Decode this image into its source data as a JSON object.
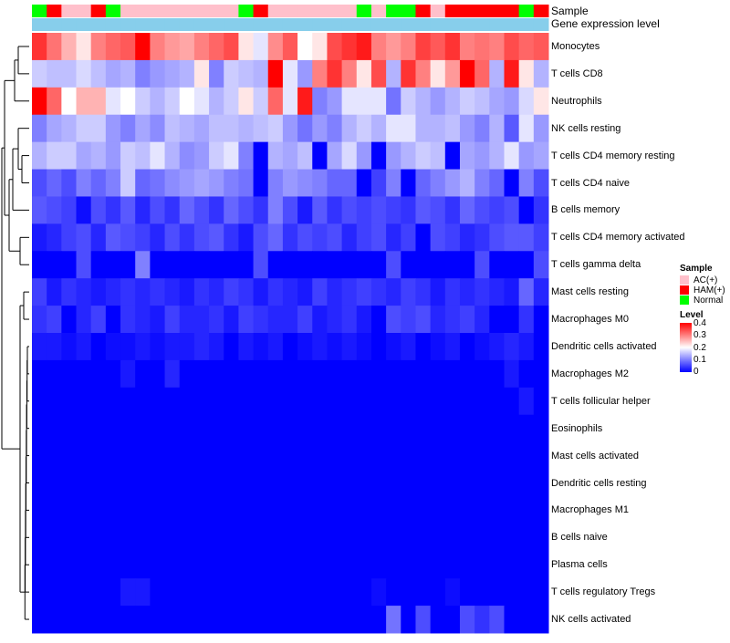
{
  "chart_data": {
    "type": "heatmap",
    "annotation_titles": {
      "sample": "Sample",
      "gene_expression": "Gene expression level"
    },
    "sample_groups": [
      "Normal",
      "HAM(+)",
      "AC(+)",
      "AC(+)",
      "HAM(+)",
      "Normal",
      "AC(+)",
      "AC(+)",
      "AC(+)",
      "AC(+)",
      "AC(+)",
      "AC(+)",
      "AC(+)",
      "AC(+)",
      "Normal",
      "HAM(+)",
      "AC(+)",
      "AC(+)",
      "AC(+)",
      "AC(+)",
      "AC(+)",
      "AC(+)",
      "Normal",
      "AC(+)",
      "Normal",
      "Normal",
      "HAM(+)",
      "AC(+)",
      "HAM(+)",
      "HAM(+)",
      "HAM(+)",
      "HAM(+)",
      "HAM(+)",
      "Normal",
      "HAM(+)"
    ],
    "sample_colors": {
      "AC(+)": "#FFC0CB",
      "HAM(+)": "#FF0000",
      "Normal": "#00FF00"
    },
    "gene_expression_color": "#87CEEB",
    "rows": [
      "Monocytes",
      "T cells CD8",
      "Neutrophils",
      "NK cells resting",
      "T cells CD4 memory resting",
      "T cells CD4 naive",
      "B cells memory",
      "T cells CD4 memory activated",
      "T cells gamma delta",
      "Mast cells resting",
      "Macrophages M0",
      "Dendritic cells activated",
      "Macrophages M2",
      "T cells follicular helper",
      "Eosinophils",
      "Mast cells activated",
      "Dendritic cells resting",
      "Macrophages M1",
      "B cells naive",
      "Plasma cells",
      "T cells regulatory  Tregs",
      "NK cells activated"
    ],
    "values": [
      [
        0.36,
        0.31,
        0.26,
        0.22,
        0.3,
        0.32,
        0.33,
        0.4,
        0.3,
        0.28,
        0.27,
        0.3,
        0.32,
        0.34,
        0.22,
        0.18,
        0.29,
        0.33,
        0.2,
        0.22,
        0.34,
        0.36,
        0.38,
        0.3,
        0.28,
        0.3,
        0.35,
        0.33,
        0.36,
        0.3,
        0.31,
        0.3,
        0.34,
        0.32,
        0.33
      ],
      [
        0.16,
        0.15,
        0.15,
        0.17,
        0.15,
        0.13,
        0.14,
        0.1,
        0.12,
        0.13,
        0.14,
        0.22,
        0.1,
        0.16,
        0.15,
        0.14,
        0.4,
        0.18,
        0.12,
        0.3,
        0.36,
        0.3,
        0.22,
        0.34,
        0.14,
        0.36,
        0.3,
        0.22,
        0.28,
        0.4,
        0.32,
        0.14,
        0.38,
        0.22,
        0.14
      ],
      [
        0.4,
        0.32,
        0.2,
        0.26,
        0.26,
        0.18,
        0.2,
        0.16,
        0.14,
        0.16,
        0.2,
        0.18,
        0.14,
        0.16,
        0.22,
        0.16,
        0.32,
        0.18,
        0.38,
        0.1,
        0.12,
        0.18,
        0.18,
        0.18,
        0.09,
        0.16,
        0.14,
        0.12,
        0.14,
        0.16,
        0.15,
        0.13,
        0.12,
        0.17,
        0.22
      ],
      [
        0.1,
        0.13,
        0.14,
        0.16,
        0.16,
        0.12,
        0.1,
        0.13,
        0.11,
        0.15,
        0.14,
        0.13,
        0.15,
        0.15,
        0.14,
        0.15,
        0.16,
        0.12,
        0.09,
        0.12,
        0.1,
        0.14,
        0.16,
        0.14,
        0.18,
        0.18,
        0.14,
        0.14,
        0.15,
        0.12,
        0.1,
        0.14,
        0.07,
        0.18,
        0.12
      ],
      [
        0.14,
        0.16,
        0.16,
        0.13,
        0.14,
        0.12,
        0.16,
        0.15,
        0.18,
        0.14,
        0.11,
        0.12,
        0.16,
        0.18,
        0.1,
        0.0,
        0.14,
        0.13,
        0.15,
        0.0,
        0.13,
        0.17,
        0.12,
        0.0,
        0.12,
        0.14,
        0.16,
        0.15,
        0.0,
        0.13,
        0.12,
        0.14,
        0.18,
        0.12,
        0.13
      ],
      [
        0.06,
        0.08,
        0.06,
        0.1,
        0.08,
        0.1,
        0.16,
        0.08,
        0.09,
        0.11,
        0.12,
        0.13,
        0.12,
        0.1,
        0.09,
        0.0,
        0.1,
        0.12,
        0.11,
        0.1,
        0.08,
        0.08,
        0.0,
        0.05,
        0.1,
        0.0,
        0.08,
        0.1,
        0.12,
        0.14,
        0.1,
        0.08,
        0.0,
        0.1,
        0.06
      ],
      [
        0.07,
        0.06,
        0.05,
        0.01,
        0.06,
        0.04,
        0.07,
        0.03,
        0.06,
        0.04,
        0.08,
        0.06,
        0.04,
        0.08,
        0.06,
        0.04,
        0.1,
        0.06,
        0.02,
        0.07,
        0.04,
        0.06,
        0.05,
        0.06,
        0.05,
        0.04,
        0.07,
        0.06,
        0.04,
        0.08,
        0.06,
        0.05,
        0.06,
        0.0,
        0.04
      ],
      [
        0.02,
        0.03,
        0.05,
        0.06,
        0.03,
        0.07,
        0.06,
        0.05,
        0.03,
        0.06,
        0.04,
        0.06,
        0.07,
        0.04,
        0.02,
        0.06,
        0.08,
        0.04,
        0.06,
        0.05,
        0.06,
        0.03,
        0.05,
        0.06,
        0.03,
        0.05,
        0.0,
        0.06,
        0.05,
        0.03,
        0.04,
        0.06,
        0.07,
        0.07,
        0.05
      ],
      [
        0.0,
        0.0,
        0.0,
        0.06,
        0.0,
        0.0,
        0.0,
        0.1,
        0.0,
        0.0,
        0.0,
        0.0,
        0.0,
        0.0,
        0.0,
        0.06,
        0.0,
        0.0,
        0.0,
        0.0,
        0.0,
        0.0,
        0.0,
        0.0,
        0.06,
        0.0,
        0.0,
        0.0,
        0.0,
        0.0,
        0.06,
        0.0,
        0.0,
        0.0,
        0.06
      ],
      [
        0.05,
        0.02,
        0.04,
        0.03,
        0.02,
        0.03,
        0.04,
        0.03,
        0.04,
        0.03,
        0.02,
        0.04,
        0.03,
        0.05,
        0.04,
        0.02,
        0.04,
        0.03,
        0.02,
        0.05,
        0.03,
        0.04,
        0.05,
        0.04,
        0.03,
        0.05,
        0.04,
        0.02,
        0.04,
        0.03,
        0.04,
        0.03,
        0.02,
        0.08,
        0.03
      ],
      [
        0.04,
        0.05,
        0.0,
        0.03,
        0.05,
        0.0,
        0.04,
        0.03,
        0.02,
        0.05,
        0.03,
        0.03,
        0.04,
        0.02,
        0.05,
        0.04,
        0.03,
        0.03,
        0.05,
        0.02,
        0.03,
        0.04,
        0.02,
        0.0,
        0.06,
        0.05,
        0.06,
        0.03,
        0.04,
        0.05,
        0.03,
        0.0,
        0.0,
        0.04,
        0.0
      ],
      [
        0.02,
        0.02,
        0.01,
        0.02,
        0.0,
        0.01,
        0.01,
        0.02,
        0.01,
        0.02,
        0.02,
        0.03,
        0.02,
        0.0,
        0.02,
        0.01,
        0.02,
        0.0,
        0.01,
        0.02,
        0.01,
        0.02,
        0.01,
        0.0,
        0.01,
        0.02,
        0.0,
        0.01,
        0.02,
        0.0,
        0.01,
        0.02,
        0.03,
        0.02,
        0.0
      ],
      [
        0.0,
        0.0,
        0.0,
        0.0,
        0.0,
        0.0,
        0.02,
        0.0,
        0.0,
        0.03,
        0.0,
        0.0,
        0.0,
        0.0,
        0.0,
        0.0,
        0.0,
        0.0,
        0.0,
        0.0,
        0.0,
        0.0,
        0.0,
        0.0,
        0.0,
        0.0,
        0.0,
        0.0,
        0.0,
        0.0,
        0.0,
        0.0,
        0.02,
        0.0,
        0.0
      ],
      [
        0.0,
        0.0,
        0.0,
        0.0,
        0.0,
        0.0,
        0.0,
        0.0,
        0.0,
        0.0,
        0.0,
        0.0,
        0.0,
        0.0,
        0.0,
        0.0,
        0.0,
        0.0,
        0.0,
        0.0,
        0.0,
        0.0,
        0.0,
        0.0,
        0.0,
        0.0,
        0.0,
        0.0,
        0.0,
        0.0,
        0.0,
        0.0,
        0.0,
        0.02,
        0.0
      ],
      [
        0.0,
        0.0,
        0.0,
        0.0,
        0.0,
        0.0,
        0.0,
        0.0,
        0.0,
        0.0,
        0.0,
        0.0,
        0.0,
        0.0,
        0.0,
        0.0,
        0.0,
        0.0,
        0.0,
        0.0,
        0.0,
        0.0,
        0.0,
        0.0,
        0.0,
        0.0,
        0.0,
        0.0,
        0.0,
        0.0,
        0.0,
        0.0,
        0.0,
        0.0,
        0.0
      ],
      [
        0.0,
        0.0,
        0.0,
        0.0,
        0.0,
        0.0,
        0.0,
        0.0,
        0.0,
        0.0,
        0.0,
        0.0,
        0.0,
        0.0,
        0.0,
        0.0,
        0.0,
        0.0,
        0.0,
        0.0,
        0.0,
        0.0,
        0.0,
        0.0,
        0.0,
        0.0,
        0.0,
        0.0,
        0.0,
        0.0,
        0.0,
        0.0,
        0.0,
        0.0,
        0.0
      ],
      [
        0.0,
        0.0,
        0.0,
        0.0,
        0.0,
        0.0,
        0.0,
        0.0,
        0.0,
        0.0,
        0.0,
        0.0,
        0.0,
        0.0,
        0.0,
        0.0,
        0.0,
        0.0,
        0.0,
        0.0,
        0.0,
        0.0,
        0.0,
        0.0,
        0.0,
        0.0,
        0.0,
        0.0,
        0.0,
        0.0,
        0.0,
        0.0,
        0.0,
        0.0,
        0.0
      ],
      [
        0.0,
        0.0,
        0.0,
        0.0,
        0.0,
        0.0,
        0.0,
        0.0,
        0.0,
        0.0,
        0.0,
        0.0,
        0.0,
        0.0,
        0.0,
        0.0,
        0.0,
        0.0,
        0.0,
        0.0,
        0.0,
        0.0,
        0.0,
        0.0,
        0.0,
        0.0,
        0.0,
        0.0,
        0.0,
        0.0,
        0.0,
        0.0,
        0.0,
        0.0,
        0.0
      ],
      [
        0.0,
        0.0,
        0.0,
        0.0,
        0.0,
        0.0,
        0.0,
        0.0,
        0.0,
        0.0,
        0.0,
        0.0,
        0.0,
        0.0,
        0.0,
        0.0,
        0.0,
        0.0,
        0.0,
        0.0,
        0.0,
        0.0,
        0.0,
        0.0,
        0.0,
        0.0,
        0.0,
        0.0,
        0.0,
        0.0,
        0.0,
        0.0,
        0.0,
        0.0,
        0.0
      ],
      [
        0.0,
        0.0,
        0.0,
        0.0,
        0.0,
        0.0,
        0.0,
        0.0,
        0.0,
        0.0,
        0.0,
        0.0,
        0.0,
        0.0,
        0.0,
        0.0,
        0.0,
        0.0,
        0.0,
        0.0,
        0.0,
        0.0,
        0.0,
        0.0,
        0.0,
        0.0,
        0.0,
        0.0,
        0.0,
        0.0,
        0.0,
        0.0,
        0.0,
        0.0,
        0.0
      ],
      [
        0.0,
        0.0,
        0.0,
        0.0,
        0.0,
        0.0,
        0.02,
        0.02,
        0.0,
        0.0,
        0.0,
        0.0,
        0.0,
        0.0,
        0.0,
        0.0,
        0.0,
        0.0,
        0.0,
        0.0,
        0.0,
        0.0,
        0.0,
        0.01,
        0.0,
        0.0,
        0.0,
        0.0,
        0.01,
        0.0,
        0.0,
        0.0,
        0.0,
        0.0,
        0.0
      ],
      [
        0.0,
        0.0,
        0.0,
        0.0,
        0.0,
        0.0,
        0.0,
        0.0,
        0.0,
        0.0,
        0.0,
        0.0,
        0.0,
        0.0,
        0.0,
        0.0,
        0.0,
        0.0,
        0.0,
        0.0,
        0.0,
        0.0,
        0.0,
        0.0,
        0.09,
        0.0,
        0.06,
        0.0,
        0.0,
        0.06,
        0.04,
        0.06,
        0.0,
        0.0,
        0.0
      ]
    ],
    "color_scale": {
      "min": 0,
      "mid": 0.2,
      "max": 0.4,
      "low": "#0000FF",
      "middle": "#FFFFFF",
      "high": "#FF0000"
    },
    "legend": {
      "sample_title": "Sample",
      "sample_items": [
        "AC(+)",
        "HAM(+)",
        "Normal"
      ],
      "level_title": "Level",
      "level_ticks": [
        "0.4",
        "0.3",
        "0.2",
        "0.1",
        "0"
      ]
    }
  }
}
